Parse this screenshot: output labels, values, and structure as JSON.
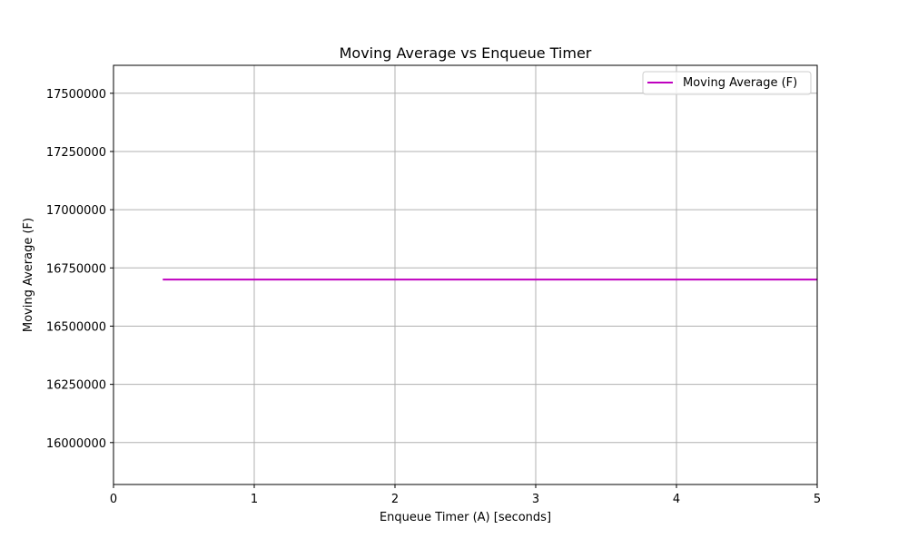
{
  "chart_data": {
    "type": "line",
    "title": "Moving Average vs Enqueue Timer",
    "xlabel": "Enqueue Timer (A) [seconds]",
    "ylabel": "Moving Average (F)",
    "xlim": [
      0,
      5
    ],
    "ylim": [
      15820000,
      17620000
    ],
    "xticks": [
      0,
      1,
      2,
      3,
      4,
      5
    ],
    "yticks": [
      16000000,
      16250000,
      16500000,
      16750000,
      17000000,
      17250000,
      17500000
    ],
    "grid": true,
    "legend_position": "top-right",
    "series": [
      {
        "name": "Moving Average (F)",
        "color": "#bf00bf",
        "x": [
          0.35,
          5.0
        ],
        "y": [
          16700000,
          16700000
        ]
      }
    ]
  }
}
